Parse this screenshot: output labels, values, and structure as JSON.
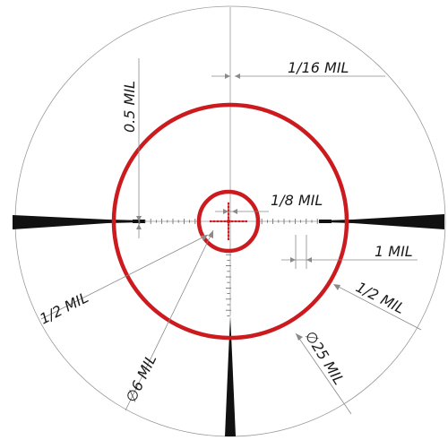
{
  "labels": {
    "sixteenth_mil": "1/16 MIL",
    "half_mil_vertical": "0.5 MIL",
    "eighth_mil": "1/8 MIL",
    "one_mil": "1 MIL",
    "half_mil_left": "1/2 MIL",
    "half_mil_right": "1/2 MIL",
    "diameter_6_mil": "∅6 MIL",
    "diameter_25_mil": "∅25 MIL"
  },
  "colors": {
    "reticle_red": "#cc1b1f",
    "posts": "#111111",
    "dimension_lines": "#8a8a8a"
  }
}
